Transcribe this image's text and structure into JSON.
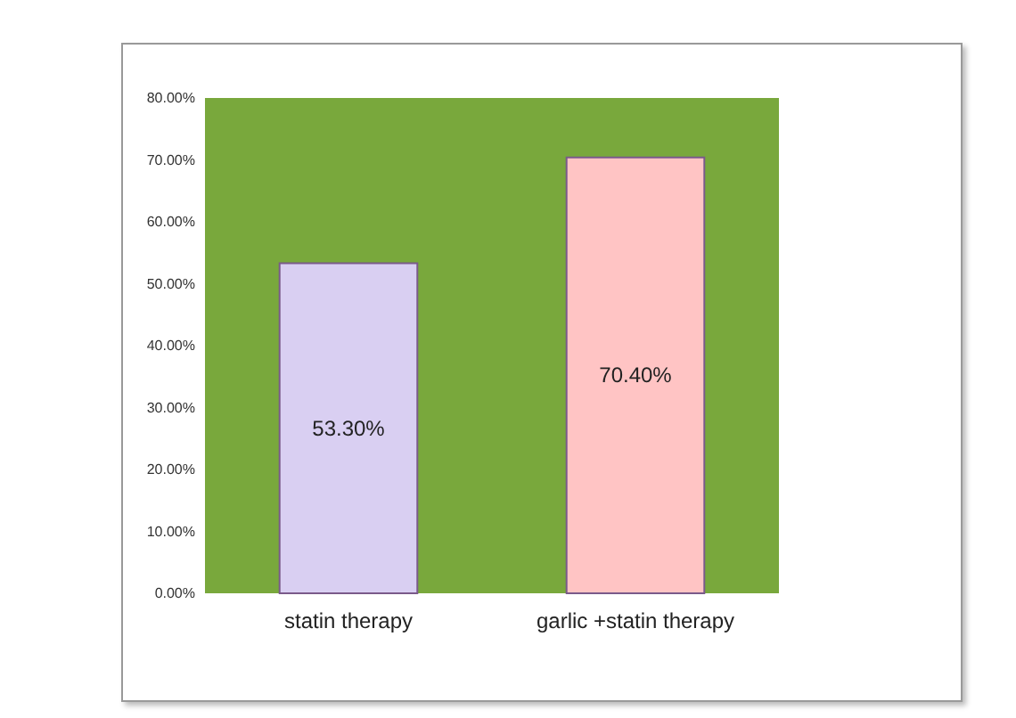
{
  "chart_data": {
    "type": "bar",
    "categories": [
      "statin therapy",
      "garlic +statin therapy"
    ],
    "values": [
      53.3,
      70.4
    ],
    "colors": [
      "#d9cff2",
      "#ffc4c4"
    ],
    "value_labels": [
      "53.30%",
      "70.40%"
    ],
    "ylim": [
      0,
      80
    ],
    "yticks": [
      {
        "value": 0,
        "label": "0.00%"
      },
      {
        "value": 10,
        "label": "10.00%"
      },
      {
        "value": 20,
        "label": "20.00%"
      },
      {
        "value": 30,
        "label": "30.00%"
      },
      {
        "value": 40,
        "label": "40.00%"
      },
      {
        "value": 50,
        "label": "50.00%"
      },
      {
        "value": 60,
        "label": "60.00%"
      },
      {
        "value": 70,
        "label": "70.00%"
      },
      {
        "value": 80,
        "label": "80.00%"
      }
    ],
    "grid": false
  }
}
